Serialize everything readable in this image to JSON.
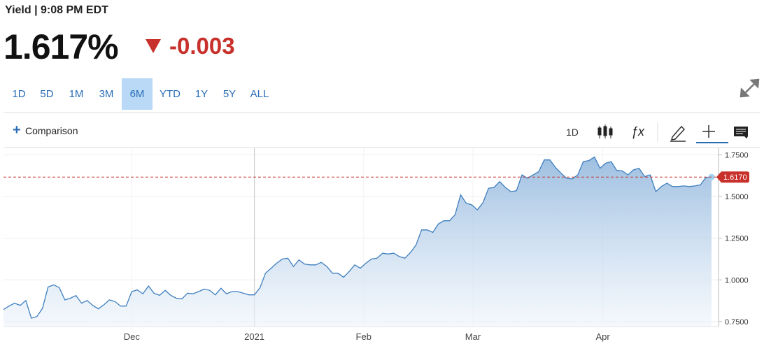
{
  "header": {
    "label": "Yield",
    "time": "| 9:08 PM EDT",
    "price": "1.617%",
    "change": "-0.003"
  },
  "ranges": [
    "1D",
    "5D",
    "1M",
    "3M",
    "6M",
    "YTD",
    "1Y",
    "5Y",
    "ALL"
  ],
  "active_range": 4,
  "toolbar": {
    "comparison": "Comparison",
    "interval": "1D"
  },
  "chart_data": {
    "type": "area",
    "color": "#3f7fbf",
    "values": [
      0.822,
      0.843,
      0.86,
      0.847,
      0.876,
      0.77,
      0.78,
      0.83,
      0.957,
      0.97,
      0.954,
      0.88,
      0.89,
      0.906,
      0.86,
      0.876,
      0.847,
      0.826,
      0.85,
      0.88,
      0.87,
      0.843,
      0.843,
      0.93,
      0.94,
      0.917,
      0.963,
      0.92,
      0.907,
      0.937,
      0.907,
      0.89,
      0.886,
      0.92,
      0.917,
      0.93,
      0.945,
      0.937,
      0.91,
      0.95,
      0.917,
      0.93,
      0.93,
      0.92,
      0.91,
      0.91,
      0.953,
      1.04,
      1.07,
      1.1,
      1.125,
      1.13,
      1.08,
      1.12,
      1.095,
      1.09,
      1.09,
      1.105,
      1.08,
      1.04,
      1.04,
      1.016,
      1.05,
      1.09,
      1.07,
      1.1,
      1.125,
      1.13,
      1.16,
      1.155,
      1.16,
      1.14,
      1.13,
      1.164,
      1.21,
      1.3,
      1.3,
      1.285,
      1.335,
      1.355,
      1.355,
      1.39,
      1.51,
      1.46,
      1.45,
      1.42,
      1.463,
      1.55,
      1.555,
      1.59,
      1.555,
      1.53,
      1.535,
      1.63,
      1.61,
      1.63,
      1.65,
      1.72,
      1.72,
      1.675,
      1.64,
      1.61,
      1.606,
      1.63,
      1.71,
      1.716,
      1.737,
      1.67,
      1.7,
      1.71,
      1.657,
      1.654,
      1.63,
      1.66,
      1.67,
      1.62,
      1.63,
      1.53,
      1.56,
      1.58,
      1.56,
      1.56,
      1.564,
      1.56,
      1.564,
      1.57,
      1.615,
      1.617
    ],
    "xlim": [
      0,
      127
    ],
    "xticks": [
      {
        "value": 23,
        "label": "Dec"
      },
      {
        "value": 45,
        "label": "2021"
      },
      {
        "value": 64.6,
        "label": "Feb"
      },
      {
        "value": 84.2,
        "label": "Mar"
      },
      {
        "value": 107.5,
        "label": "Apr"
      }
    ],
    "ylim": [
      0.72,
      1.79
    ],
    "yticks": [
      {
        "value": 0.75,
        "label": "0.7500"
      },
      {
        "value": 1.0,
        "label": "1.0000"
      },
      {
        "value": 1.25,
        "label": "1.2500"
      },
      {
        "value": 1.5,
        "label": "1.5000"
      },
      {
        "value": 1.75,
        "label": "1.7500"
      }
    ],
    "grid": true,
    "reference_line": {
      "value": 1.617,
      "label": "1.6170",
      "color": "#c8312b"
    }
  }
}
